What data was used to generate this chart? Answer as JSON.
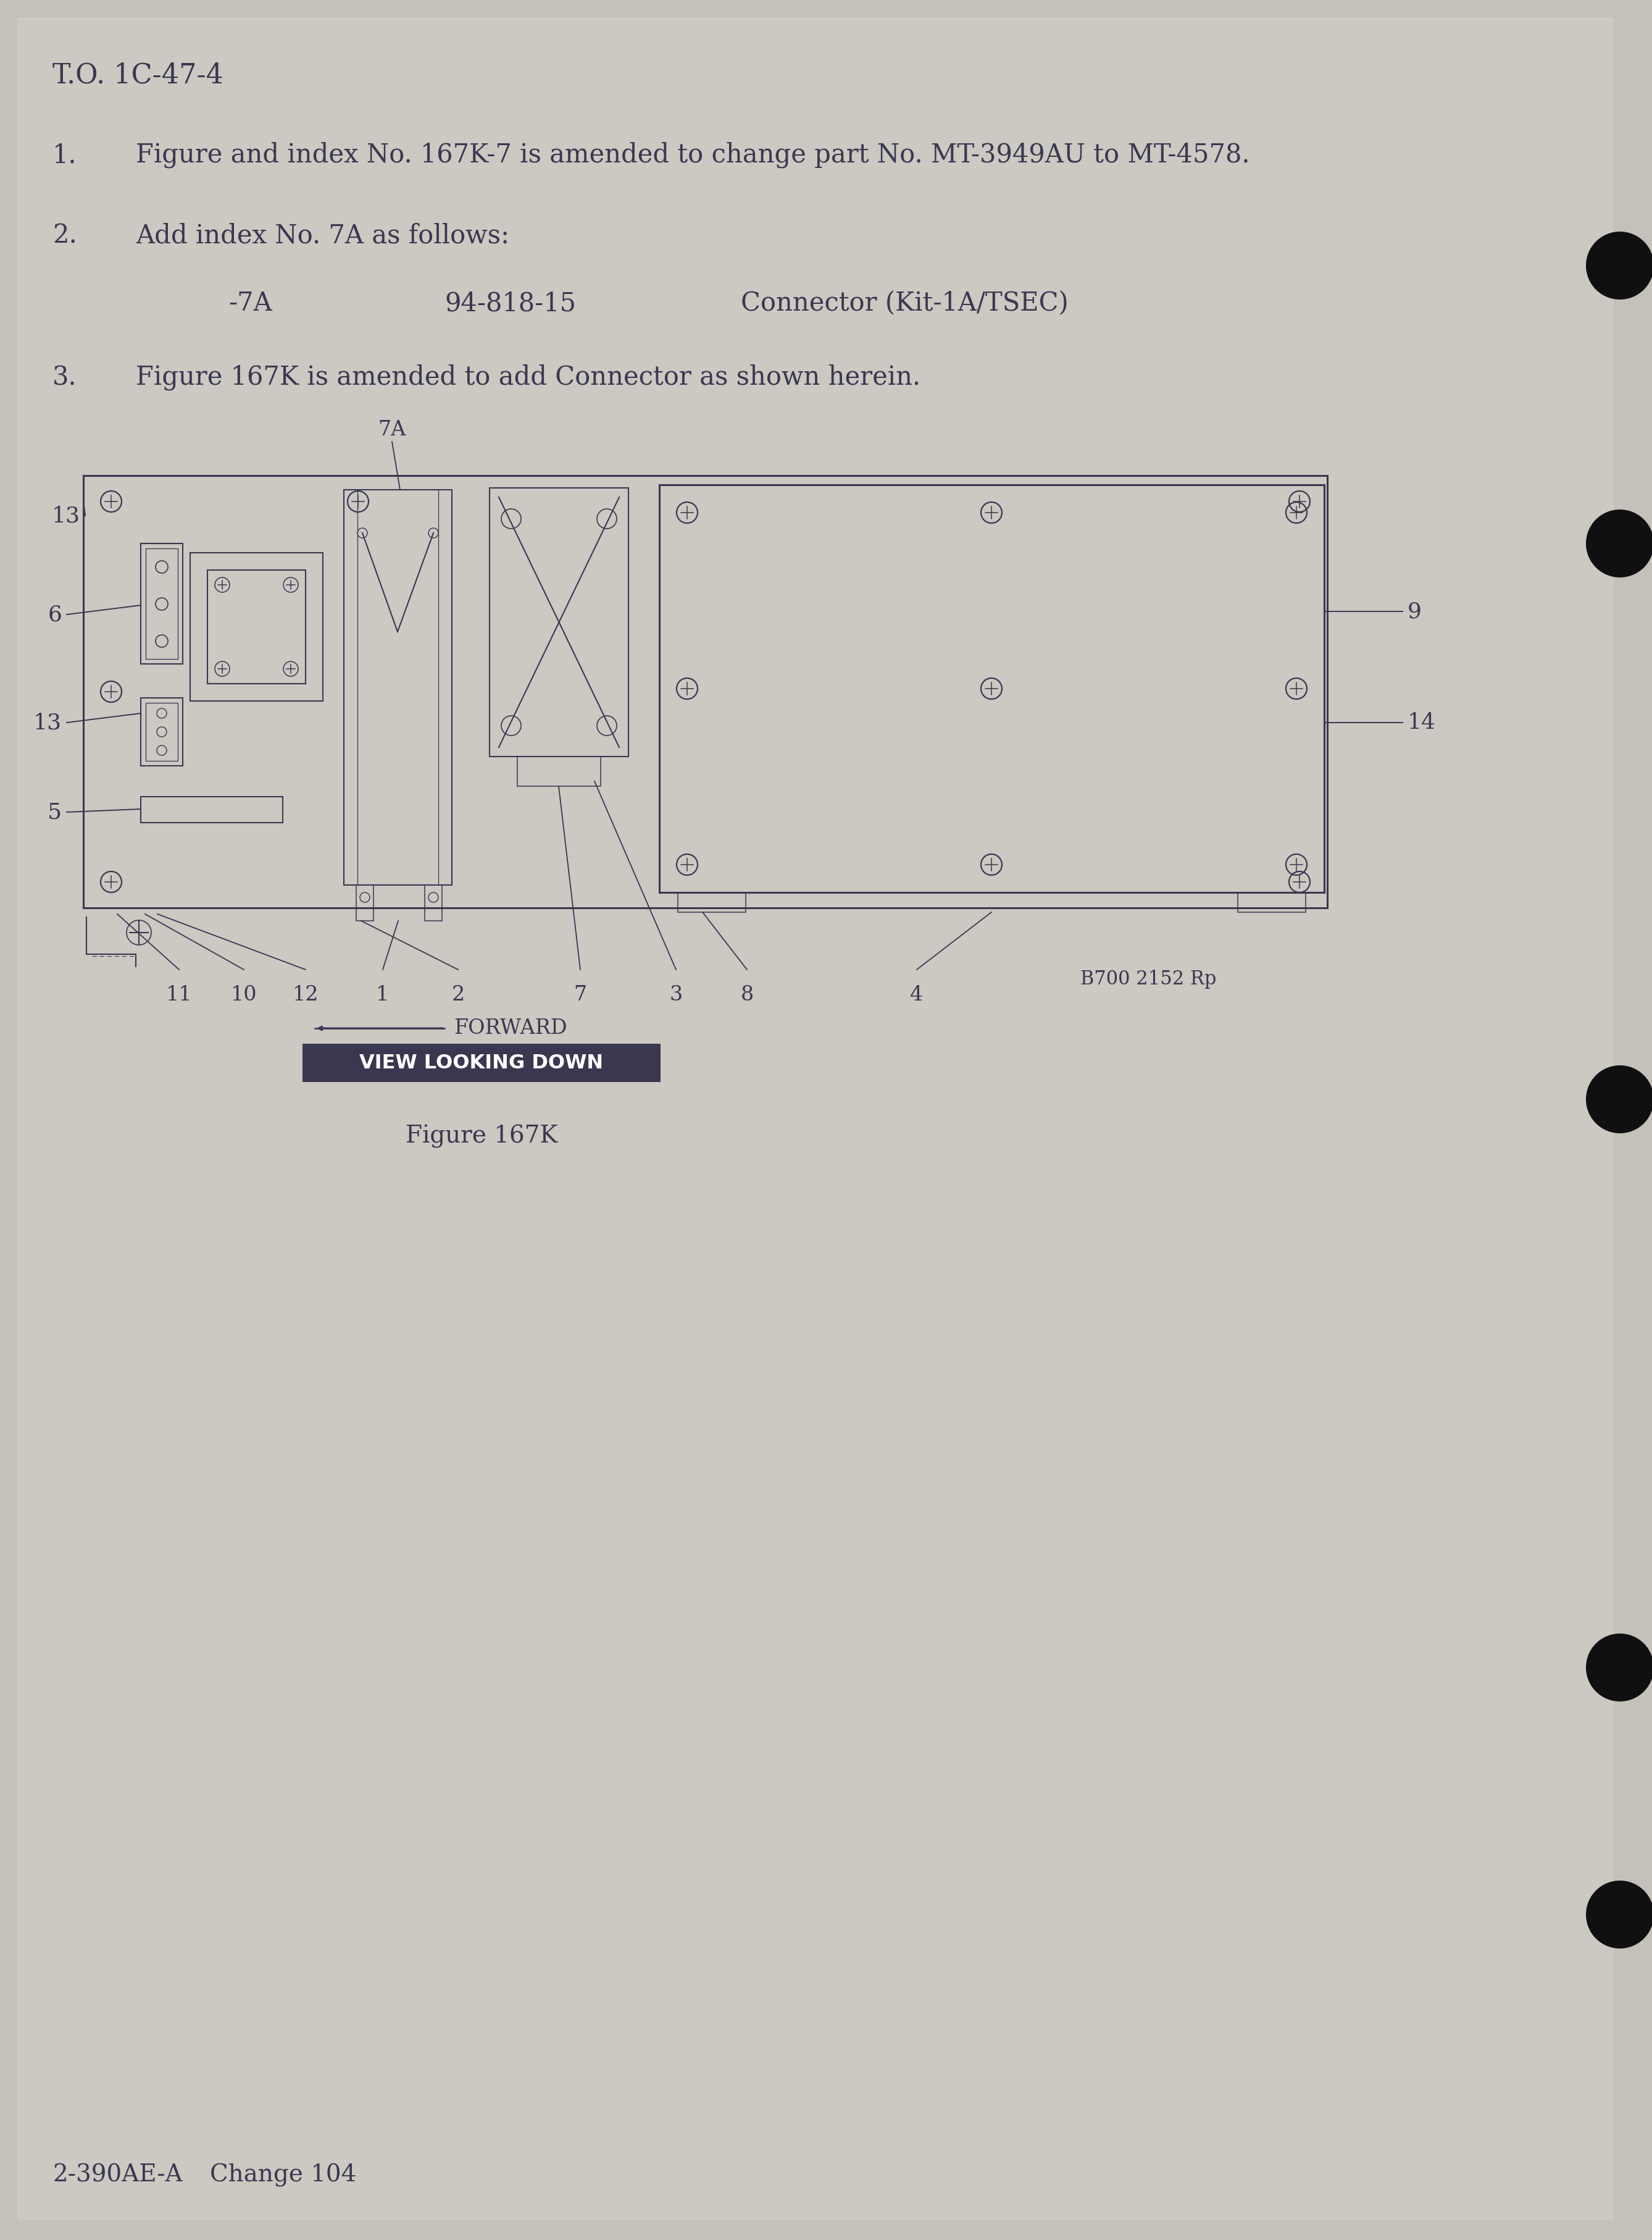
{
  "bg": "#c4c0ba",
  "paper": "#ccc8c2",
  "tc": "#3a3850",
  "white": "#ffffff",
  "dark_box_color": "#3a3850",
  "to_header": "T.O. 1C-47-4",
  "line1": "Figure and index No. 167K-7 is amended to change part No. MT-3949AU to MT-4578.",
  "line2_intro": "Add index No. 7A as follows:",
  "line2_sub_idx": "-7A",
  "line2_sub_pn": "94-818-15",
  "line2_sub_desc": "Connector (Kit-1A/TSEC)",
  "line3": "Figure 167K is amended to add Connector as shown herein.",
  "label_7A": "7A",
  "label_13a": "13",
  "label_6": "6",
  "label_13b": "13",
  "label_5": "5",
  "label_9": "9",
  "label_14": "14",
  "bottom_nums": [
    "11",
    "10",
    "12",
    "1",
    "2",
    "7",
    "3",
    "8",
    "4"
  ],
  "ref": "B700 2152 Rp",
  "forward": "←FORWARD",
  "view": "VIEW LOOKING DOWN",
  "fig_label": "Figure 167K",
  "footer_doc": "2-390AE-A",
  "footer_chg": "Change 104",
  "hole_positions": [
    430,
    880,
    1780,
    2700,
    3100
  ],
  "hole_color": "#111010"
}
